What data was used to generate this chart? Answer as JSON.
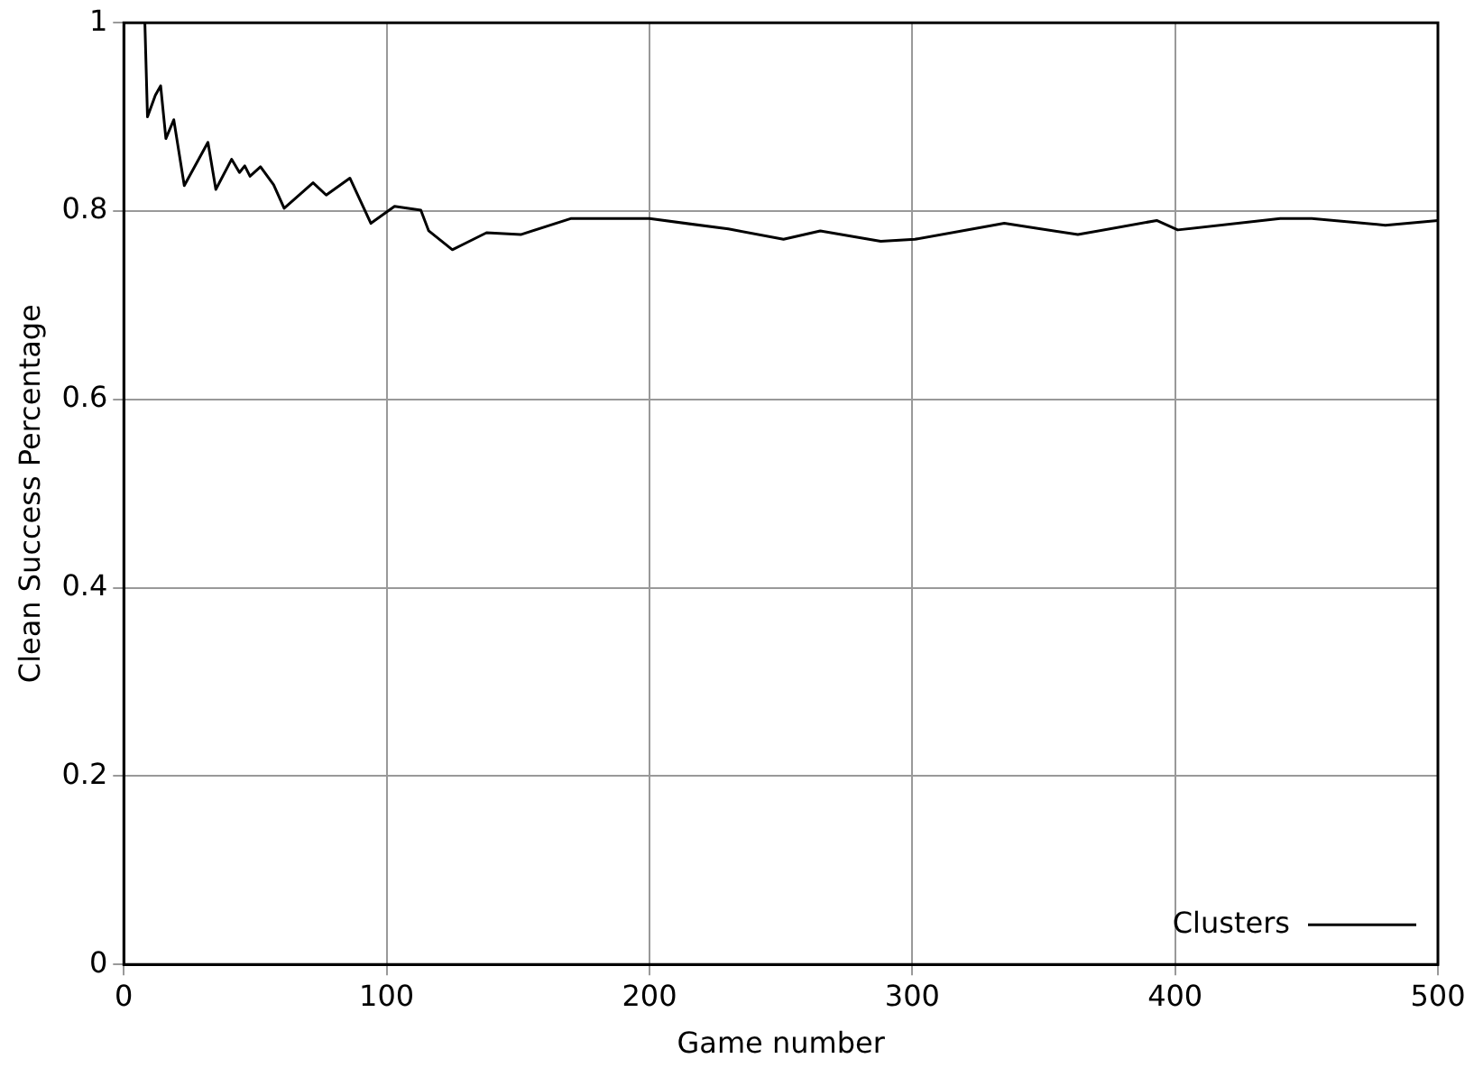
{
  "chart_data": {
    "type": "line",
    "xlabel": "Game number",
    "ylabel": "Clean Success Percentage",
    "x": [
      8,
      9,
      12,
      14,
      16,
      19,
      23,
      32,
      35,
      41,
      44,
      46,
      48,
      52,
      57,
      61,
      72,
      77,
      86,
      94,
      103,
      113,
      116,
      125,
      138,
      151,
      170,
      200,
      230,
      251,
      265,
      288,
      301,
      335,
      363,
      393,
      401,
      440,
      452,
      480,
      500
    ],
    "series": [
      {
        "name": "Clusters",
        "color": "#000000",
        "values": [
          1.0,
          0.9,
          0.923,
          0.933,
          0.877,
          0.897,
          0.827,
          0.873,
          0.823,
          0.855,
          0.841,
          0.848,
          0.837,
          0.847,
          0.828,
          0.803,
          0.83,
          0.817,
          0.835,
          0.787,
          0.805,
          0.801,
          0.779,
          0.759,
          0.777,
          0.775,
          0.792,
          0.792,
          0.781,
          0.77,
          0.779,
          0.768,
          0.77,
          0.787,
          0.775,
          0.79,
          0.78,
          0.792,
          0.792,
          0.785,
          0.79
        ]
      }
    ],
    "xlim": [
      0,
      500
    ],
    "xticks": [
      0,
      100,
      200,
      300,
      400,
      500
    ],
    "ylim": [
      0,
      1
    ],
    "yticks": [
      0,
      0.2,
      0.4,
      0.6,
      0.8,
      1
    ],
    "grid": true,
    "legend": "bottom right",
    "marker": "none",
    "line_style": "solid"
  }
}
